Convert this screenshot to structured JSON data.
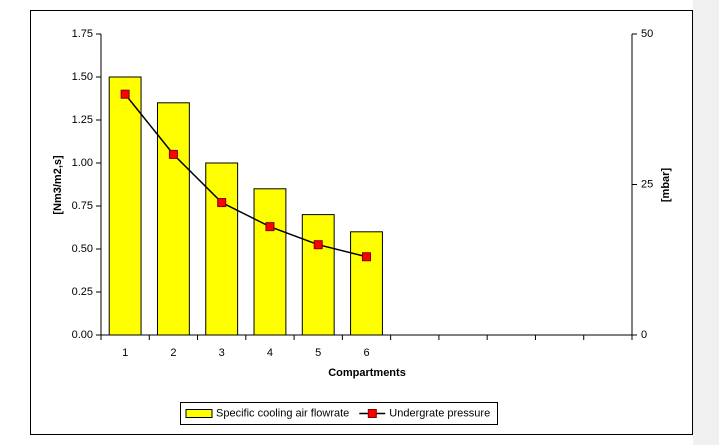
{
  "chart_data": {
    "type": "bar",
    "categories": [
      "1",
      "2",
      "3",
      "4",
      "5",
      "6",
      null,
      null,
      null,
      null,
      null
    ],
    "x_label": "Compartments",
    "y_label": "[Nm3/m2,s]",
    "y2_label": "[mbar]",
    "ylim": [
      0,
      1.75
    ],
    "yticks": [
      {
        "value": 0,
        "label": "0.00"
      },
      {
        "value": 0.25,
        "label": "0.25"
      },
      {
        "value": 0.5,
        "label": "0.50"
      },
      {
        "value": 0.75,
        "label": "0.75"
      },
      {
        "value": 1,
        "label": "1.00"
      },
      {
        "value": 1.25,
        "label": "1.25"
      },
      {
        "value": 1.5,
        "label": "1.50"
      },
      {
        "value": 1.75,
        "label": "1.75"
      }
    ],
    "y2lim": [
      0,
      50
    ],
    "y2ticks": [
      0,
      25,
      50
    ],
    "grid": false,
    "legend": "bottom",
    "series": [
      {
        "name": "Specific cooling air flowrate",
        "type": "bar",
        "color": "#ffff00",
        "values": [
          1.5,
          1.35,
          1.0,
          0.85,
          0.7,
          0.6,
          null,
          null,
          null,
          null,
          null
        ]
      },
      {
        "name": "Undergrate pressure",
        "type": "line",
        "axis": "y2",
        "color": "#ff0000",
        "values": [
          40,
          30,
          22,
          18,
          15,
          13,
          null,
          null,
          null,
          null,
          null
        ]
      }
    ]
  }
}
